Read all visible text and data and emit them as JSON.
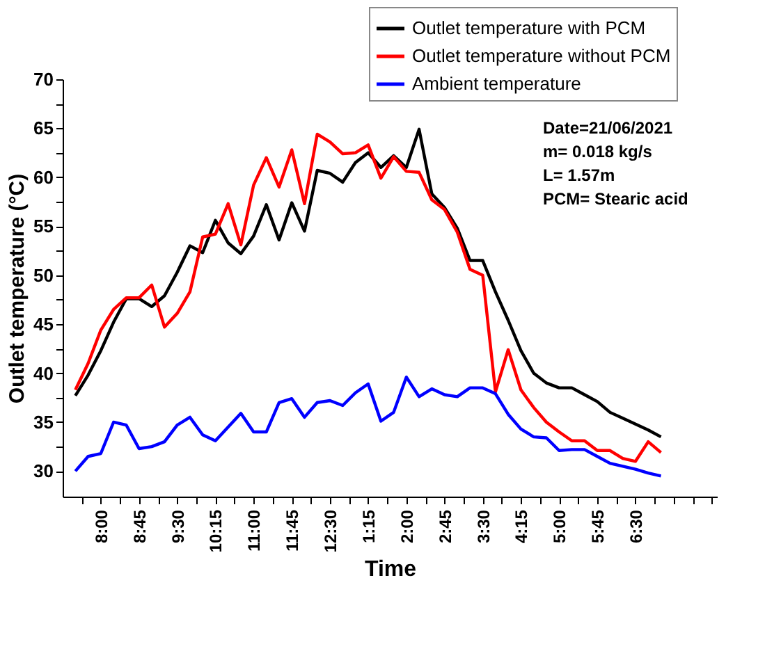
{
  "chart_data": {
    "type": "line",
    "xlabel": "Time",
    "ylabel": "Outlet temperature (°C)",
    "x": [
      "2021-06-21T07:30",
      "2021-06-21T07:45",
      "2021-06-21T08:00",
      "2021-06-21T08:15",
      "2021-06-21T08:30",
      "2021-06-21T08:45",
      "2021-06-21T09:00",
      "2021-06-21T09:15",
      "2021-06-21T09:30",
      "2021-06-21T09:45",
      "2021-06-21T10:00",
      "2021-06-21T10:15",
      "2021-06-21T10:30",
      "2021-06-21T10:45",
      "2021-06-21T11:00",
      "2021-06-21T11:15",
      "2021-06-21T11:30",
      "2021-06-21T11:45",
      "2021-06-21T12:00",
      "2021-06-21T12:15",
      "2021-06-21T12:30",
      "2021-06-21T12:45",
      "2021-06-21T13:00",
      "2021-06-21T13:15",
      "2021-06-21T13:30",
      "2021-06-21T13:45",
      "2021-06-21T14:00",
      "2021-06-21T14:15",
      "2021-06-21T14:30",
      "2021-06-21T14:45",
      "2021-06-21T15:00",
      "2021-06-21T15:15",
      "2021-06-21T15:30",
      "2021-06-21T15:45",
      "2021-06-21T16:00",
      "2021-06-21T16:15",
      "2021-06-21T16:30",
      "2021-06-21T16:45",
      "2021-06-21T17:00",
      "2021-06-21T17:15",
      "2021-06-21T17:30",
      "2021-06-21T17:45",
      "2021-06-21T18:00",
      "2021-06-21T18:15",
      "2021-06-21T18:30",
      "2021-06-21T18:45",
      "2021-06-21T19:00"
    ],
    "series": [
      {
        "name": "Outlet temperature with PCM",
        "color": "#000000",
        "values": [
          37.7,
          39.8,
          42.3,
          45.2,
          47.6,
          47.6,
          46.8,
          47.9,
          50.3,
          53.0,
          52.3,
          55.6,
          53.3,
          52.2,
          54.0,
          57.2,
          53.6,
          57.4,
          54.5,
          60.7,
          60.4,
          59.5,
          61.5,
          62.5,
          61.0,
          62.2,
          61.0,
          64.9,
          58.3,
          56.9,
          54.8,
          51.5,
          51.5,
          48.3,
          45.4,
          42.3,
          40.0,
          39.0,
          38.5,
          38.5,
          37.8,
          37.1,
          36.0,
          35.4,
          34.8,
          34.2,
          33.5
        ]
      },
      {
        "name": "Outlet temperature without PCM",
        "color": "#ff0000",
        "values": [
          38.3,
          41.0,
          44.4,
          46.5,
          47.7,
          47.7,
          49.0,
          44.7,
          46.1,
          48.3,
          53.9,
          54.2,
          57.3,
          53.1,
          59.2,
          62.0,
          59.0,
          62.8,
          57.3,
          64.4,
          63.6,
          62.4,
          62.5,
          63.3,
          59.9,
          62.1,
          60.6,
          60.5,
          57.7,
          56.7,
          54.4,
          50.6,
          50.0,
          38.1,
          42.4,
          38.3,
          36.5,
          35.0,
          34.0,
          33.1,
          33.1,
          32.1,
          32.1,
          31.3,
          31.0,
          33.0,
          31.9
        ]
      },
      {
        "name": "Ambient temperature",
        "color": "#0000ff",
        "values": [
          30.0,
          31.5,
          31.8,
          35.0,
          34.7,
          32.3,
          32.5,
          33.0,
          34.7,
          35.5,
          33.7,
          33.1,
          34.5,
          35.9,
          34.0,
          34.0,
          37.0,
          37.4,
          35.5,
          37.0,
          37.2,
          36.7,
          38.0,
          38.9,
          35.1,
          36.0,
          39.6,
          37.6,
          38.4,
          37.8,
          37.6,
          38.5,
          38.5,
          37.9,
          35.8,
          34.3,
          33.5,
          33.4,
          32.1,
          32.2,
          32.2,
          31.5,
          30.8,
          30.5,
          30.2,
          29.8,
          29.5
        ]
      }
    ],
    "xlim": [
      "2021-06-21T07:15",
      "2021-06-21T20:06"
    ],
    "xticks": [
      {
        "value": "2021-06-21T07:37:30",
        "label": null
      },
      {
        "value": "2021-06-21T08:00",
        "label": "8:00"
      },
      {
        "value": "2021-06-21T08:22:30",
        "label": null
      },
      {
        "value": "2021-06-21T08:45",
        "label": "8:45"
      },
      {
        "value": "2021-06-21T09:07:30",
        "label": null
      },
      {
        "value": "2021-06-21T09:30",
        "label": "9:30"
      },
      {
        "value": "2021-06-21T09:52:30",
        "label": null
      },
      {
        "value": "2021-06-21T10:15",
        "label": "10:15"
      },
      {
        "value": "2021-06-21T10:37:30",
        "label": null
      },
      {
        "value": "2021-06-21T11:00",
        "label": "11:00"
      },
      {
        "value": "2021-06-21T11:22:30",
        "label": null
      },
      {
        "value": "2021-06-21T11:45",
        "label": "11:45"
      },
      {
        "value": "2021-06-21T12:07:30",
        "label": null
      },
      {
        "value": "2021-06-21T12:30",
        "label": "12:30"
      },
      {
        "value": "2021-06-21T12:52:30",
        "label": null
      },
      {
        "value": "2021-06-21T13:15",
        "label": "1:15"
      },
      {
        "value": "2021-06-21T13:37:30",
        "label": null
      },
      {
        "value": "2021-06-21T14:00",
        "label": "2:00"
      },
      {
        "value": "2021-06-21T14:22:30",
        "label": null
      },
      {
        "value": "2021-06-21T14:45",
        "label": "2:45"
      },
      {
        "value": "2021-06-21T15:07:30",
        "label": null
      },
      {
        "value": "2021-06-21T15:30",
        "label": "3:30"
      },
      {
        "value": "2021-06-21T15:52:30",
        "label": null
      },
      {
        "value": "2021-06-21T16:15",
        "label": "4:15"
      },
      {
        "value": "2021-06-21T16:37:30",
        "label": null
      },
      {
        "value": "2021-06-21T17:00",
        "label": "5:00"
      },
      {
        "value": "2021-06-21T17:22:30",
        "label": null
      },
      {
        "value": "2021-06-21T17:45",
        "label": "5:45"
      },
      {
        "value": "2021-06-21T18:07:30",
        "label": null
      },
      {
        "value": "2021-06-21T18:30",
        "label": "6:30"
      },
      {
        "value": "2021-06-21T18:52:30",
        "label": null
      },
      {
        "value": "2021-06-21T19:15",
        "label": null
      },
      {
        "value": "2021-06-21T19:37:30",
        "label": null
      },
      {
        "value": "2021-06-21T20:00",
        "label": null
      }
    ],
    "ylim": [
      27.4,
      70
    ],
    "yticks": [
      30,
      {
        "value": 32.5,
        "label": null
      },
      35,
      {
        "value": 37.5,
        "label": null
      },
      40,
      {
        "value": 42.5,
        "label": null
      },
      45,
      {
        "value": 47.5,
        "label": null
      },
      50,
      {
        "value": 52.5,
        "label": null
      },
      55,
      {
        "value": 57.5,
        "label": null
      },
      60,
      {
        "value": 62.5,
        "label": null
      },
      65,
      {
        "value": 67.5,
        "label": null
      },
      70
    ],
    "annotations": [
      "Date=21/06/2021",
      "m= 0.018 kg/s",
      "L= 1.57m",
      "PCM= Stearic acid"
    ],
    "grid": false,
    "legend": "top right",
    "marker": "none",
    "line_style": "solid"
  }
}
